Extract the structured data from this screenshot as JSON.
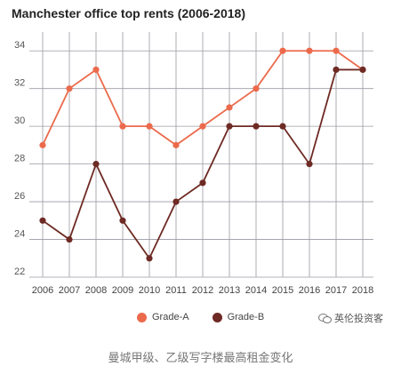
{
  "chart_data": {
    "type": "line",
    "title": "Manchester office top rents (2006-2018)",
    "x": [
      "2006",
      "2007",
      "2008",
      "2009",
      "2010",
      "2011",
      "2012",
      "2013",
      "2014",
      "2015",
      "2016",
      "2017",
      "2018"
    ],
    "ylim": [
      22,
      35
    ],
    "yticks": [
      22,
      24,
      26,
      28,
      30,
      32,
      34
    ],
    "grid": true,
    "legend_position": "bottom",
    "series": [
      {
        "name": "Grade-A",
        "color": "#ec6a4c",
        "values": [
          29,
          32,
          33,
          30,
          30,
          29,
          30,
          31,
          32,
          34,
          34,
          34,
          33
        ]
      },
      {
        "name": "Grade-B",
        "color": "#6e2a24",
        "values": [
          25,
          24,
          28,
          25,
          23,
          26,
          27,
          30,
          30,
          30,
          28,
          33,
          33
        ]
      }
    ]
  },
  "watermark": "英伦投资客",
  "caption": "曼城甲级、乙级写字楼最高租金变化"
}
